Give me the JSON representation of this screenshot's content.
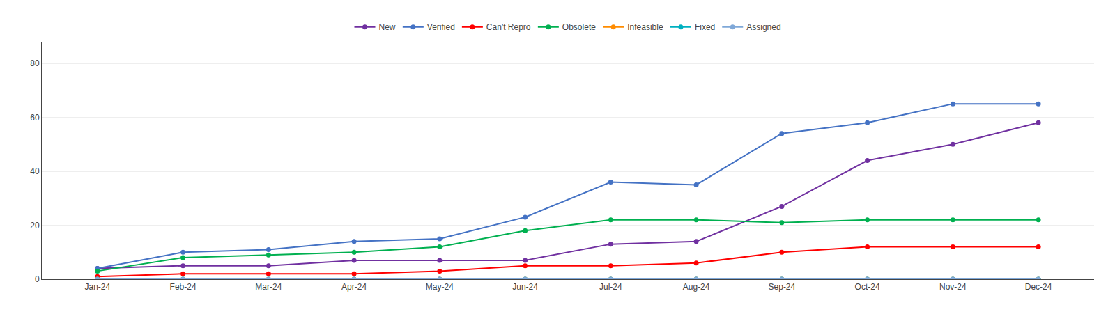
{
  "chart_data": {
    "type": "line",
    "categories": [
      "Jan-24",
      "Feb-24",
      "Mar-24",
      "Apr-24",
      "May-24",
      "Jun-24",
      "Jul-24",
      "Aug-24",
      "Sep-24",
      "Oct-24",
      "Nov-24",
      "Dec-24"
    ],
    "series": [
      {
        "name": "New",
        "color": "#7030a0",
        "values": [
          4,
          5,
          5,
          7,
          7,
          7,
          13,
          14,
          27,
          44,
          50,
          58
        ]
      },
      {
        "name": "Verified",
        "color": "#4472c4",
        "values": [
          4,
          10,
          11,
          14,
          15,
          23,
          36,
          35,
          54,
          58,
          65,
          65
        ]
      },
      {
        "name": "Can't Repro",
        "color": "#ff0000",
        "values": [
          1,
          2,
          2,
          2,
          3,
          5,
          5,
          6,
          10,
          12,
          12,
          12
        ]
      },
      {
        "name": "Obsolete",
        "color": "#00b050",
        "values": [
          3,
          8,
          9,
          10,
          12,
          18,
          22,
          22,
          21,
          22,
          22,
          22
        ]
      },
      {
        "name": "Infeasible",
        "color": "#ff8c00",
        "values": [
          0,
          0,
          0,
          0,
          0,
          0,
          0,
          0,
          0,
          0,
          0,
          0
        ]
      },
      {
        "name": "Fixed",
        "color": "#00b0c0",
        "values": [
          0,
          0,
          0,
          0,
          0,
          0,
          0,
          0,
          0,
          0,
          0,
          0
        ]
      },
      {
        "name": "Assigned",
        "color": "#7fa8d8",
        "values": [
          0,
          0,
          0,
          0,
          0,
          0,
          0,
          0,
          0,
          0,
          0,
          0
        ]
      }
    ],
    "ylim": [
      0,
      88
    ],
    "yticks": [
      0,
      20,
      40,
      60,
      80
    ],
    "grid": true,
    "legend": "top",
    "marker": "circle"
  }
}
